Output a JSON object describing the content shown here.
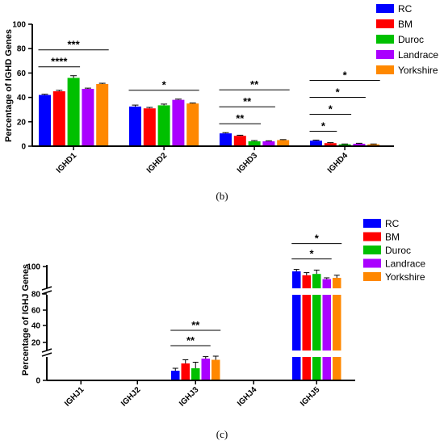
{
  "chart_data": [
    {
      "type": "bar",
      "panel_label": "(b)",
      "ylabel": "Percentage of IGHD Genes",
      "ylim": [
        0,
        100
      ],
      "yticks": [
        "0",
        "20",
        "40",
        "60",
        "80",
        "100"
      ],
      "categories": [
        "IGHD1",
        "IGHD2",
        "IGHD3",
        "IGHD4"
      ],
      "series": [
        {
          "name": "RC",
          "color": "#0000FF",
          "values": [
            42,
            32.5,
            10.5,
            4.5
          ],
          "errors": [
            0.6,
            1.2,
            0.6,
            0.5
          ]
        },
        {
          "name": "BM",
          "color": "#FF0000",
          "values": [
            45,
            31,
            8.5,
            2.5
          ],
          "errors": [
            0.8,
            0.8,
            0.5,
            0.4
          ]
        },
        {
          "name": "Duroc",
          "color": "#00C000",
          "values": [
            56,
            33.5,
            4,
            1.5
          ],
          "errors": [
            1.8,
            1.0,
            0.6,
            0.3
          ]
        },
        {
          "name": "Landrace",
          "color": "#AA00FF",
          "values": [
            47,
            38,
            4,
            2
          ],
          "errors": [
            0.6,
            0.6,
            0.4,
            0.4
          ]
        },
        {
          "name": "Yorkshire",
          "color": "#FF8800",
          "values": [
            51,
            35,
            5,
            1.5
          ],
          "errors": [
            0.6,
            0.4,
            0.4,
            0.3
          ]
        }
      ],
      "significance": [
        {
          "label": "****",
          "category": 0,
          "from": 0,
          "to": 2
        },
        {
          "label": "***",
          "category": 0,
          "from": 0,
          "to": 4
        },
        {
          "label": "*",
          "category": 1,
          "from": 0,
          "to": 4
        },
        {
          "label": "**",
          "category": 2,
          "from": 0,
          "to": 2
        },
        {
          "label": "**",
          "category": 2,
          "from": 0,
          "to": 3
        },
        {
          "label": "**",
          "category": 2,
          "from": 0,
          "to": 4
        },
        {
          "label": "*",
          "category": 3,
          "from": 0,
          "to": 1
        },
        {
          "label": "*",
          "category": 3,
          "from": 0,
          "to": 2
        },
        {
          "label": "*",
          "category": 3,
          "from": 0,
          "to": 3
        },
        {
          "label": "*",
          "category": 3,
          "from": 0,
          "to": 4
        }
      ],
      "legend": "top-right"
    },
    {
      "type": "bar",
      "panel_label": "(c)",
      "ylabel": "Percentage of IGHJ Genes",
      "axis_break": true,
      "yticks": [
        "0",
        "20",
        "40",
        "60",
        "80",
        "100"
      ],
      "categories": [
        "IGHJ1",
        "IGHJ2",
        "IGHJ3",
        "IGHJ4",
        "IGHJ5"
      ],
      "series": [
        {
          "name": "RC",
          "color": "#0000FF",
          "values": [
            0,
            0,
            4,
            0,
            95
          ],
          "errors": [
            0,
            0,
            1,
            0,
            1.5
          ]
        },
        {
          "name": "BM",
          "color": "#FF0000",
          "values": [
            0,
            0,
            7,
            0,
            92
          ],
          "errors": [
            0,
            0,
            1.5,
            0,
            2
          ]
        },
        {
          "name": "Duroc",
          "color": "#00C000",
          "values": [
            0,
            0,
            5,
            0,
            93
          ],
          "errors": [
            0,
            0,
            2.5,
            0,
            3
          ]
        },
        {
          "name": "Landrace",
          "color": "#AA00FF",
          "values": [
            0,
            0,
            9,
            0,
            89
          ],
          "errors": [
            0,
            0,
            0.8,
            0,
            1
          ]
        },
        {
          "name": "Yorkshire",
          "color": "#FF8800",
          "values": [
            0,
            0,
            8.5,
            0,
            90
          ],
          "errors": [
            0,
            0,
            1.5,
            0,
            2
          ]
        }
      ],
      "significance": [
        {
          "label": "**",
          "category": 2,
          "from": 0,
          "to": 3
        },
        {
          "label": "**",
          "category": 2,
          "from": 0,
          "to": 4
        },
        {
          "label": "*",
          "category": 4,
          "from": 0,
          "to": 3
        },
        {
          "label": "*",
          "category": 4,
          "from": 0,
          "to": 4
        }
      ],
      "legend": "top-right"
    }
  ]
}
